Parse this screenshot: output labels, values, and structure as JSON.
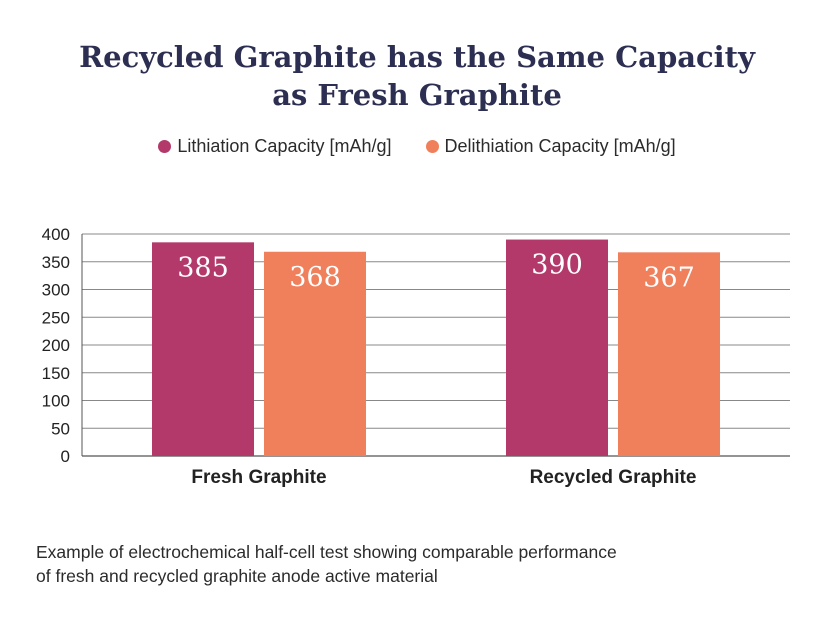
{
  "title": {
    "line1": "Recycled Graphite has the Same Capacity",
    "line2": "as Fresh Graphite"
  },
  "legend": [
    {
      "label": "Lithiation Capacity [mAh/g]",
      "color": "#b3396a"
    },
    {
      "label": "Delithiation Capacity [mAh/g]",
      "color": "#f07f5c"
    }
  ],
  "caption": {
    "line1": "Example of electrochemical half-cell test showing comparable performance",
    "line2": "of fresh and recycled graphite anode active material"
  },
  "chart_data": {
    "type": "bar",
    "categories": [
      "Fresh Graphite",
      "Recycled Graphite"
    ],
    "series": [
      {
        "name": "Lithiation Capacity [mAh/g]",
        "values": [
          385,
          390
        ],
        "color": "#b3396a"
      },
      {
        "name": "Delithiation Capacity [mAh/g]",
        "values": [
          368,
          367
        ],
        "color": "#f07f5c"
      }
    ],
    "ylim": [
      0,
      400
    ],
    "yticks": [
      0,
      50,
      100,
      150,
      200,
      250,
      300,
      350,
      400
    ],
    "grid": true,
    "legend_position": "top-center",
    "data_labels": true
  }
}
